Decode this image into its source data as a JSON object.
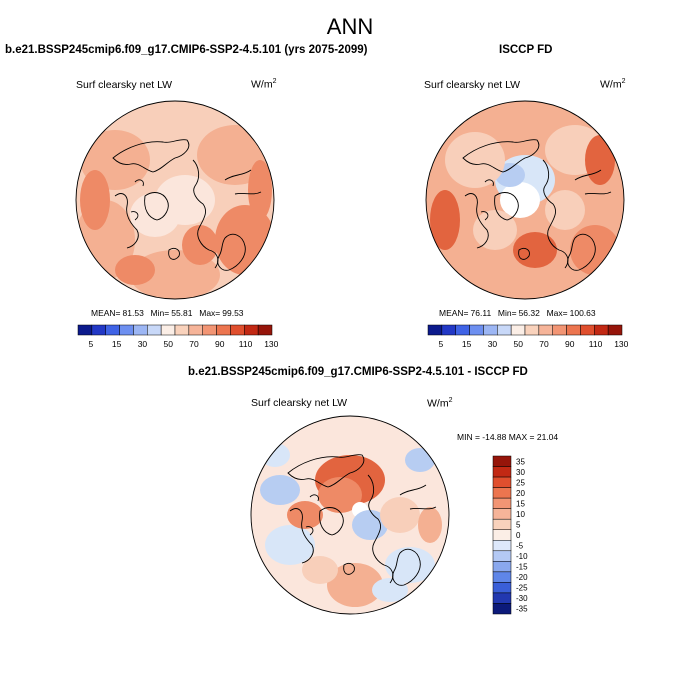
{
  "figure": {
    "title": "ANN"
  },
  "panels": [
    {
      "id": "model",
      "title": "b.e21.BSSP245cmip6.f09_g17.CMIP6-SSP2-4.5.101 (yrs 2075-2099)",
      "variable": "Surf clearsky net LW",
      "units_base": "W/m",
      "units_exp": "2",
      "mean_label": "MEAN=",
      "mean": "81.53",
      "min_label": "Min=",
      "min": "55.81",
      "max_label": "Max=",
      "max": "99.53"
    },
    {
      "id": "obs",
      "title": "ISCCP FD",
      "variable": "Surf clearsky net LW",
      "units_base": "W/m",
      "units_exp": "2",
      "mean_label": "MEAN=",
      "mean": "76.11",
      "min_label": "Min=",
      "min": "56.32",
      "max_label": "Max=",
      "max": "100.63"
    },
    {
      "id": "diff",
      "title": "b.e21.BSSP245cmip6.f09_g17.CMIP6-SSP2-4.5.101 - ISCCP FD",
      "variable": "Surf clearsky net LW",
      "units_base": "W/m",
      "units_exp": "2",
      "minmax_text": "MIN = -14.88 MAX =  21.04"
    }
  ],
  "colorbars": {
    "absolute": {
      "colors": [
        "#0c1a8c",
        "#2238c6",
        "#3f63e6",
        "#6d8ff0",
        "#9cb6f4",
        "#c8d8f8",
        "#fbeee6",
        "#f9d2bc",
        "#f6b499",
        "#f29574",
        "#ec754f",
        "#e04f2e",
        "#c22914",
        "#96150a"
      ],
      "labels": [
        "5",
        "15",
        "30",
        "50",
        "70",
        "90",
        "110",
        "130"
      ]
    },
    "difference": {
      "colors": [
        "#96150a",
        "#c22914",
        "#e04f2e",
        "#ec754f",
        "#f29574",
        "#f6b499",
        "#f9d2bc",
        "#fbeee6",
        "#dde8fb",
        "#b4c9f4",
        "#8aa8ee",
        "#5f86e8",
        "#3a5fd8",
        "#2238b0",
        "#0c1a7a"
      ],
      "labels": [
        "35",
        "30",
        "25",
        "20",
        "15",
        "10",
        "5",
        "0",
        "-5",
        "-10",
        "-15",
        "-20",
        "-25",
        "-30",
        "-35"
      ]
    }
  },
  "map_colors": {
    "pale": "#fbe6dc",
    "light": "#f8cfba",
    "mid": "#f4b092",
    "strong": "#ee8a66",
    "deep": "#e2643f",
    "cool": "#d8e6f8",
    "cool2": "#b7cdf2",
    "white": "#ffffff",
    "coast": "#000000"
  }
}
